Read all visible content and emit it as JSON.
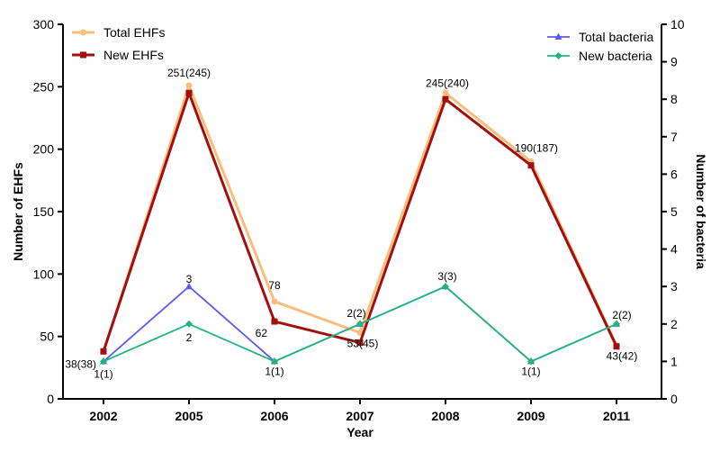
{
  "chart_data": {
    "type": "line",
    "categories": [
      "2002",
      "2005",
      "2006",
      "2007",
      "2008",
      "2009",
      "2011"
    ],
    "xlabel": "Year",
    "ylabel_left": "Number of EHFs",
    "ylabel_right": "Number of bacteria",
    "ylim_left": [
      0,
      300
    ],
    "yticks_left": [
      0,
      50,
      100,
      150,
      200,
      250,
      300
    ],
    "ylim_right": [
      0,
      10
    ],
    "yticks_right": [
      0,
      1,
      2,
      3,
      4,
      5,
      6,
      7,
      8,
      9,
      10
    ],
    "grid": false,
    "legend": [
      {
        "position": "top-left",
        "entries": [
          "Total EHFs",
          "New EHFs"
        ]
      },
      {
        "position": "top-right",
        "entries": [
          "Total bacteria",
          "New bacteria"
        ]
      }
    ],
    "series": [
      {
        "name": "Total EHFs",
        "axis": "left",
        "color": "#f9bd7c",
        "marker": "circle",
        "values": [
          38,
          251,
          78,
          53,
          245,
          190,
          43
        ]
      },
      {
        "name": "New EHFs",
        "axis": "left",
        "color": "#a30f0f",
        "marker": "square",
        "values": [
          38,
          245,
          62,
          45,
          240,
          187,
          42
        ]
      },
      {
        "name": "Total bacteria",
        "axis": "right",
        "color": "#5b5bed",
        "marker": "triangle",
        "values": [
          1,
          3,
          1,
          2,
          3,
          1,
          2
        ]
      },
      {
        "name": "New bacteria",
        "axis": "right",
        "color": "#22b57c",
        "marker": "diamond",
        "values": [
          1,
          2,
          1,
          2,
          3,
          1,
          2
        ]
      }
    ],
    "annotations": [
      {
        "text": "38(38)",
        "x": "2002",
        "y": 38,
        "axis": "left"
      },
      {
        "text": "251(245)",
        "x": "2005",
        "y": 251,
        "axis": "left"
      },
      {
        "text": "78",
        "x": "2006",
        "y": 78,
        "axis": "left"
      },
      {
        "text": "62",
        "x": "2006",
        "y": 62,
        "axis": "left"
      },
      {
        "text": "53(45)",
        "x": "2007",
        "y": 53,
        "axis": "left"
      },
      {
        "text": "245(240)",
        "x": "2008",
        "y": 245,
        "axis": "left"
      },
      {
        "text": "190(187)",
        "x": "2009",
        "y": 190,
        "axis": "left"
      },
      {
        "text": "43(42)",
        "x": "2011",
        "y": 43,
        "axis": "left"
      },
      {
        "text": "1(1)",
        "x": "2002",
        "y": 1,
        "axis": "right"
      },
      {
        "text": "3",
        "x": "2005",
        "y": 3,
        "axis": "right"
      },
      {
        "text": "2",
        "x": "2005",
        "y": 2,
        "axis": "right"
      },
      {
        "text": "1(1)",
        "x": "2006",
        "y": 1,
        "axis": "right"
      },
      {
        "text": "2(2)",
        "x": "2007",
        "y": 2,
        "axis": "right"
      },
      {
        "text": "3(3)",
        "x": "2008",
        "y": 3,
        "axis": "right"
      },
      {
        "text": "1(1)",
        "x": "2009",
        "y": 1,
        "axis": "right"
      },
      {
        "text": "2(2)",
        "x": "2011",
        "y": 2,
        "axis": "right"
      }
    ]
  }
}
